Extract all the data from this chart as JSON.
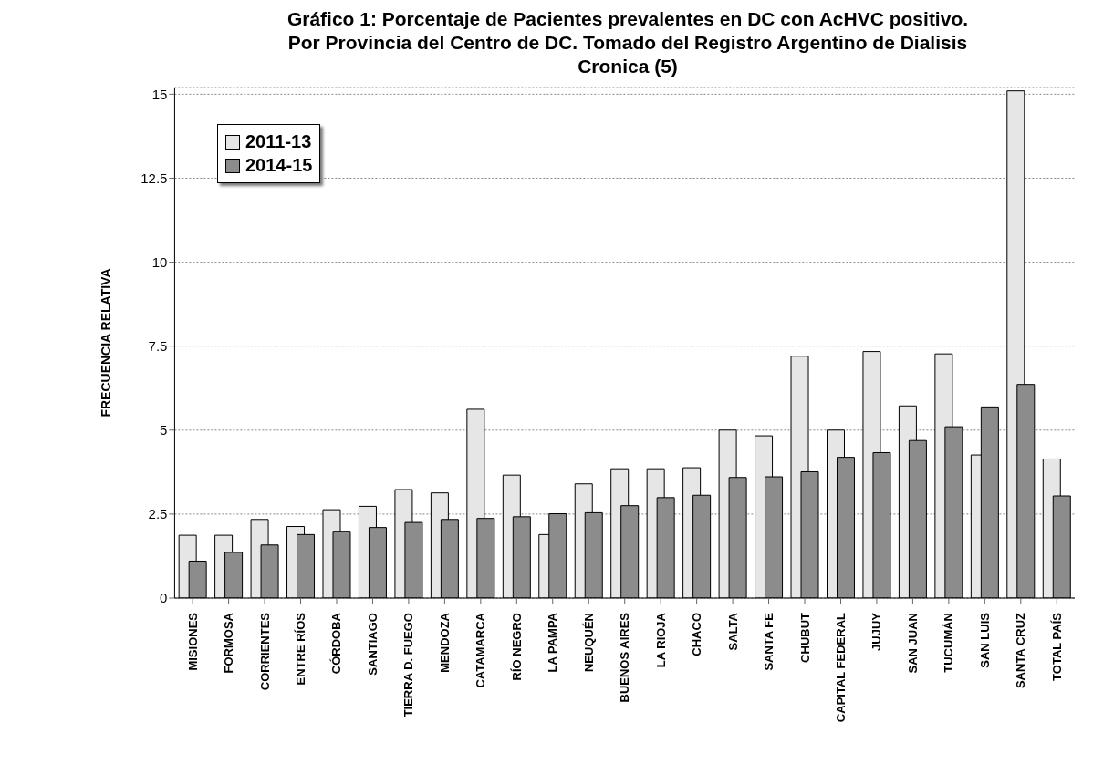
{
  "chart_data": {
    "type": "bar",
    "title": "Gráfico 1: Porcentaje de Pacientes prevalentes en DC con AcHVC positivo. Por Provincia del Centro de DC. Tomado del Registro Argentino de Dialisis Cronica (5)",
    "ylabel": "FRECUENCIA RELATIVA",
    "categories": [
      "MISIONES",
      "FORMOSA",
      "CORRIENTES",
      "ENTRE RÍOS",
      "CÓRDOBA",
      "SANTIAGO",
      "TIERRA D. FUEGO",
      "MENDOZA",
      "CATAMARCA",
      "RÍO NEGRO",
      "LA PAMPA",
      "NEUQUÉN",
      "BUENOS AIRES",
      "LA RIOJA",
      "CHACO",
      "SALTA",
      "SANTA FE",
      "CHUBUT",
      "CAPITAL FEDERAL",
      "JUJUY",
      "SAN JUAN",
      "TUCUMÁN",
      "SAN LUIS",
      "SANTA CRUZ",
      "TOTAL PAÍS"
    ],
    "series": [
      {
        "name": "2011-13",
        "color": "#e6e6e6",
        "values": [
          1.87,
          1.87,
          2.34,
          2.13,
          2.63,
          2.73,
          3.23,
          3.13,
          5.62,
          3.66,
          1.89,
          3.4,
          3.85,
          3.85,
          3.88,
          5.0,
          4.83,
          7.2,
          5.0,
          7.34,
          5.72,
          7.27,
          4.26,
          15.1,
          4.14
        ]
      },
      {
        "name": "2014-15",
        "color": "#8c8c8c",
        "values": [
          1.1,
          1.36,
          1.58,
          1.89,
          1.99,
          2.1,
          2.25,
          2.34,
          2.37,
          2.42,
          2.51,
          2.54,
          2.75,
          2.99,
          3.06,
          3.59,
          3.61,
          3.76,
          4.19,
          4.33,
          4.69,
          5.1,
          5.69,
          6.36,
          3.04
        ]
      }
    ],
    "ylim": [
      0,
      15.2
    ],
    "yticks": [
      0,
      2.5,
      5,
      7.5,
      10,
      12.5,
      15
    ],
    "grid": "y",
    "legend": "top left"
  }
}
